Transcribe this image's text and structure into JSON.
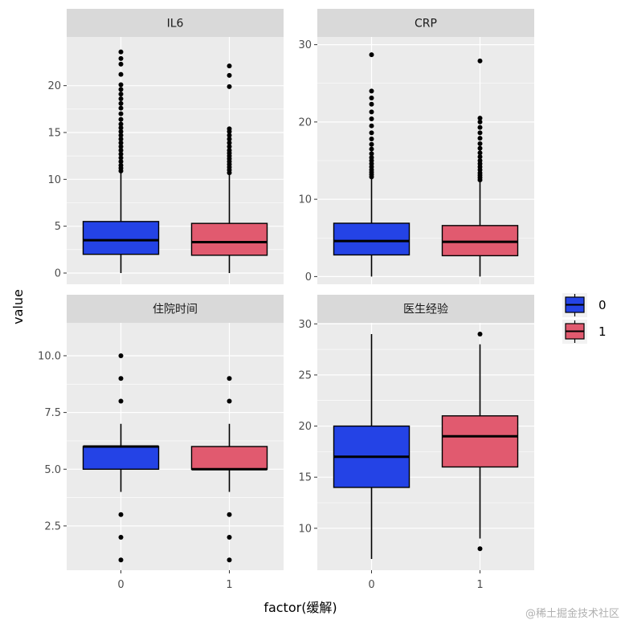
{
  "chart_data": {
    "type": "boxplot",
    "facet_layout": "2x2",
    "x_title": "factor(缓解)",
    "y_title": "value",
    "categories": [
      "0",
      "1"
    ],
    "legend": {
      "position": "right",
      "entries": [
        {
          "label": "0",
          "color": "#2443E6"
        },
        {
          "label": "1",
          "color": "#E15A6F"
        }
      ]
    },
    "colors": {
      "panel_bg": "#EBEBEB",
      "grid": "#FFFFFF",
      "strip_bg": "#D9D9D9"
    },
    "panels": [
      {
        "strip": "IL6",
        "ylim": [
          -1.2,
          25.2
        ],
        "yticks": [
          0,
          5,
          10,
          15,
          20
        ],
        "tick_labels": [
          "0",
          "5",
          "10",
          "15",
          "20"
        ],
        "boxes": [
          {
            "group": "0",
            "min": 0,
            "q1": 2.0,
            "median": 3.5,
            "q3": 5.5,
            "max": 10.7,
            "outliers": [
              10.9,
              11.2,
              11.5,
              11.9,
              12.3,
              12.7,
              13.1,
              13.5,
              13.9,
              14.3,
              14.7,
              15.1,
              15.5,
              15.9,
              16.4,
              17.0,
              17.6,
              18.1,
              18.6,
              19.1,
              19.6,
              20.1,
              21.2,
              22.3,
              22.9,
              23.6
            ]
          },
          {
            "group": "1",
            "min": 0,
            "q1": 1.9,
            "median": 3.3,
            "q3": 5.3,
            "max": 10.5,
            "outliers": [
              10.7,
              11.0,
              11.3,
              11.6,
              11.9,
              12.2,
              12.5,
              12.8,
              13.1,
              13.5,
              13.9,
              14.3,
              14.7,
              15.1,
              15.4,
              19.9,
              21.1,
              22.1
            ]
          }
        ]
      },
      {
        "strip": "CRP",
        "ylim": [
          -1,
          31
        ],
        "yticks": [
          0,
          10,
          20,
          30
        ],
        "tick_labels": [
          "0",
          "10",
          "20",
          "30"
        ],
        "boxes": [
          {
            "group": "0",
            "min": 0,
            "q1": 2.8,
            "median": 4.6,
            "q3": 6.9,
            "max": 12.7,
            "outliers": [
              12.9,
              13.2,
              13.5,
              13.8,
              14.2,
              14.6,
              15.0,
              15.4,
              15.9,
              16.5,
              17.1,
              17.8,
              18.6,
              19.5,
              20.4,
              21.3,
              22.3,
              23.1,
              24.0,
              28.7
            ]
          },
          {
            "group": "1",
            "min": 0,
            "q1": 2.7,
            "median": 4.5,
            "q3": 6.6,
            "max": 12.3,
            "outliers": [
              12.5,
              12.8,
              13.1,
              13.4,
              13.8,
              14.2,
              14.6,
              15.0,
              15.5,
              16.0,
              16.6,
              17.2,
              17.9,
              18.6,
              19.3,
              20.0,
              20.5,
              27.9
            ]
          }
        ]
      },
      {
        "strip": "住院时间",
        "ylim": [
          0.55,
          11.45
        ],
        "yticks": [
          2.5,
          5.0,
          7.5,
          10.0
        ],
        "tick_labels": [
          "2.5",
          "5.0",
          "7.5",
          "10.0"
        ],
        "boxes": [
          {
            "group": "0",
            "min": 4,
            "q1": 5,
            "median": 6,
            "q3": 6,
            "max": 7,
            "outliers": [
              1,
              2,
              3,
              8,
              9,
              10
            ]
          },
          {
            "group": "1",
            "min": 4,
            "q1": 5,
            "median": 5,
            "q3": 6,
            "max": 7,
            "outliers": [
              1,
              2,
              3,
              8,
              9
            ]
          }
        ]
      },
      {
        "strip": "医生经验",
        "ylim": [
          5.9,
          30.1
        ],
        "yticks": [
          10,
          15,
          20,
          25,
          30
        ],
        "tick_labels": [
          "10",
          "15",
          "20",
          "25",
          "30"
        ],
        "boxes": [
          {
            "group": "0",
            "min": 7,
            "q1": 14,
            "median": 17,
            "q3": 20,
            "max": 29,
            "outliers": []
          },
          {
            "group": "1",
            "min": 9,
            "q1": 16,
            "median": 19,
            "q3": 21,
            "max": 28,
            "outliers": [
              8,
              29
            ]
          }
        ]
      }
    ]
  },
  "watermark": "@稀土掘金技术社区"
}
